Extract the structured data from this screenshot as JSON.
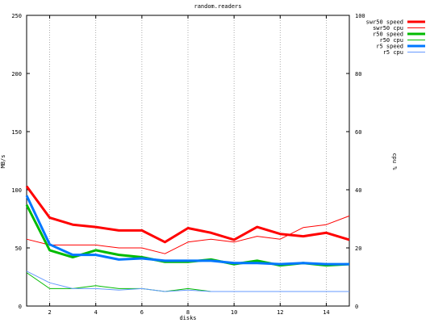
{
  "chart_data": {
    "type": "line",
    "title": "random.readers",
    "xlabel": "disks",
    "ylabel": "MB/s",
    "y2label": "cpu %",
    "xlim": [
      1,
      15
    ],
    "ylim": [
      0,
      250
    ],
    "y2lim": [
      0,
      100
    ],
    "xticks": [
      2,
      4,
      6,
      8,
      10,
      12,
      14
    ],
    "yticks": [
      0,
      50,
      100,
      150,
      200,
      250
    ],
    "y2ticks": [
      0,
      20,
      40,
      60,
      80,
      100
    ],
    "grid": "vertical-dotted",
    "legend_position": "top-right",
    "x": [
      1,
      2,
      3,
      4,
      5,
      6,
      7,
      8,
      9,
      10,
      11,
      12,
      13,
      14,
      15
    ],
    "series": [
      {
        "name": "swr50 speed",
        "axis": "left",
        "color": "#ff0000",
        "width": 3,
        "values": [
          103,
          76,
          70,
          68,
          65,
          65,
          55,
          67,
          63,
          57,
          68,
          62,
          60,
          63,
          57
        ]
      },
      {
        "name": "swr50 cpu",
        "axis": "right",
        "color": "#ff0000",
        "width": 1,
        "values": [
          23,
          21,
          21,
          21,
          20,
          20,
          18,
          22,
          23,
          22,
          24,
          23,
          27,
          28,
          31
        ]
      },
      {
        "name": "r50 speed",
        "axis": "left",
        "color": "#00bb00",
        "width": 3,
        "values": [
          87,
          48,
          42,
          48,
          44,
          42,
          38,
          38,
          40,
          36,
          39,
          35,
          37,
          35,
          36
        ]
      },
      {
        "name": "r50 cpu",
        "axis": "right",
        "color": "#00bb00",
        "width": 1,
        "values": [
          11.5,
          6,
          6,
          7,
          6,
          6,
          5,
          6,
          5,
          5,
          5,
          5,
          5,
          5,
          5
        ]
      },
      {
        "name": "r5 speed",
        "axis": "left",
        "color": "#0077ff",
        "width": 3,
        "values": [
          95,
          53,
          44,
          44,
          40,
          41,
          39,
          39,
          39,
          37,
          37,
          36,
          37,
          36,
          36
        ]
      },
      {
        "name": "r5 cpu",
        "axis": "right",
        "color": "#6699ff",
        "width": 1,
        "values": [
          12,
          8,
          6,
          6,
          5.5,
          6,
          5,
          5.5,
          5,
          5,
          5,
          5,
          5,
          5,
          5
        ]
      }
    ]
  }
}
